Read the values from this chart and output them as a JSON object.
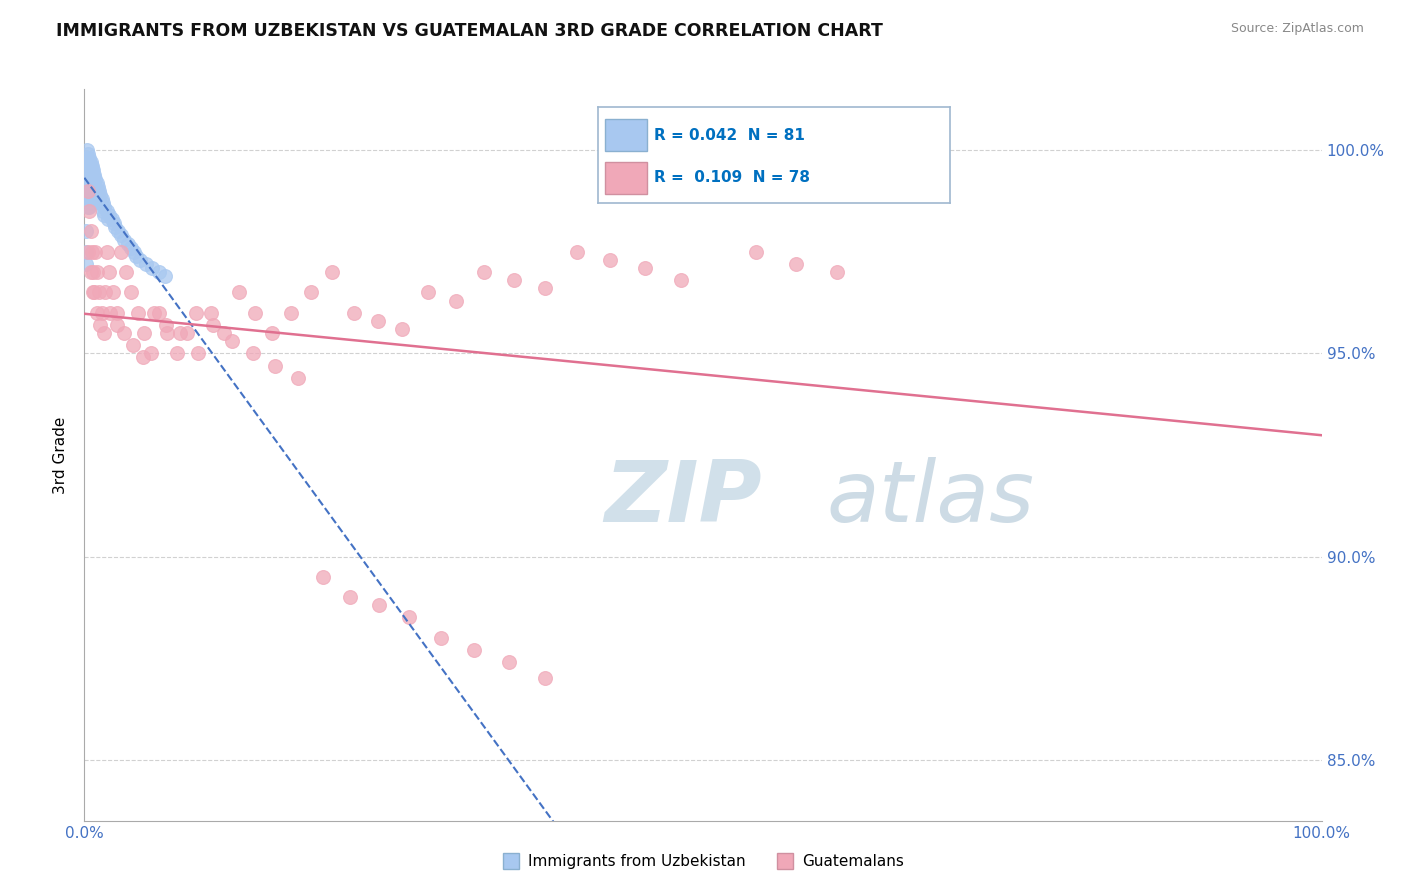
{
  "title": "IMMIGRANTS FROM UZBEKISTAN VS GUATEMALAN 3RD GRADE CORRELATION CHART",
  "source": "Source: ZipAtlas.com",
  "ylabel": "3rd Grade",
  "ytick_labels": [
    "85.0%",
    "90.0%",
    "95.0%",
    "100.0%"
  ],
  "ytick_values": [
    0.85,
    0.9,
    0.95,
    1.0
  ],
  "legend_text1": "R = 0.042  N = 81",
  "legend_text2": "R =  0.109  N = 78",
  "legend_label1": "Immigrants from Uzbekistan",
  "legend_label2": "Guatemalans",
  "watermark_zip": "ZIP",
  "watermark_atlas": "atlas",
  "color_blue": "#a8c8f0",
  "color_pink": "#f0a8b8",
  "color_blue_line": "#4472c4",
  "color_pink_line": "#e07090",
  "color_legend_r": "#0070c0",
  "color_axis_label": "#4472c4",
  "xlim": [
    0.0,
    1.0
  ],
  "ylim": [
    0.835,
    1.015
  ],
  "uzbekistan_x": [
    0.001,
    0.001,
    0.001,
    0.002,
    0.002,
    0.002,
    0.002,
    0.002,
    0.003,
    0.003,
    0.003,
    0.003,
    0.003,
    0.003,
    0.003,
    0.003,
    0.003,
    0.004,
    0.004,
    0.004,
    0.004,
    0.004,
    0.004,
    0.004,
    0.004,
    0.005,
    0.005,
    0.005,
    0.005,
    0.005,
    0.005,
    0.005,
    0.006,
    0.006,
    0.006,
    0.006,
    0.006,
    0.007,
    0.007,
    0.007,
    0.007,
    0.007,
    0.008,
    0.008,
    0.008,
    0.008,
    0.009,
    0.009,
    0.009,
    0.01,
    0.01,
    0.01,
    0.011,
    0.011,
    0.012,
    0.012,
    0.013,
    0.013,
    0.014,
    0.015,
    0.015,
    0.016,
    0.016,
    0.018,
    0.019,
    0.02,
    0.022,
    0.024,
    0.025,
    0.027,
    0.03,
    0.032,
    0.035,
    0.038,
    0.04,
    0.042,
    0.045,
    0.05,
    0.055,
    0.06,
    0.065
  ],
  "uzbekistan_y": [
    0.98,
    0.975,
    0.972,
    1.0,
    0.998,
    0.995,
    0.993,
    0.99,
    0.999,
    0.997,
    0.996,
    0.994,
    0.993,
    0.991,
    0.989,
    0.988,
    0.986,
    0.998,
    0.997,
    0.995,
    0.993,
    0.991,
    0.989,
    0.988,
    0.986,
    0.997,
    0.996,
    0.994,
    0.993,
    0.991,
    0.989,
    0.987,
    0.996,
    0.995,
    0.993,
    0.991,
    0.989,
    0.995,
    0.994,
    0.992,
    0.99,
    0.988,
    0.994,
    0.992,
    0.991,
    0.989,
    0.993,
    0.991,
    0.989,
    0.992,
    0.99,
    0.988,
    0.991,
    0.989,
    0.99,
    0.988,
    0.989,
    0.987,
    0.988,
    0.987,
    0.985,
    0.986,
    0.984,
    0.985,
    0.983,
    0.984,
    0.983,
    0.982,
    0.981,
    0.98,
    0.979,
    0.978,
    0.977,
    0.976,
    0.975,
    0.974,
    0.973,
    0.972,
    0.971,
    0.97,
    0.969
  ],
  "guatemalan_x": [
    0.003,
    0.004,
    0.005,
    0.006,
    0.007,
    0.008,
    0.009,
    0.01,
    0.012,
    0.014,
    0.016,
    0.018,
    0.02,
    0.023,
    0.026,
    0.03,
    0.034,
    0.038,
    0.043,
    0.048,
    0.054,
    0.06,
    0.067,
    0.075,
    0.083,
    0.092,
    0.102,
    0.113,
    0.125,
    0.138,
    0.152,
    0.167,
    0.183,
    0.2,
    0.218,
    0.237,
    0.257,
    0.278,
    0.3,
    0.323,
    0.347,
    0.372,
    0.398,
    0.425,
    0.453,
    0.482,
    0.512,
    0.543,
    0.575,
    0.608,
    0.003,
    0.005,
    0.007,
    0.01,
    0.013,
    0.017,
    0.021,
    0.026,
    0.032,
    0.039,
    0.047,
    0.056,
    0.066,
    0.077,
    0.09,
    0.104,
    0.119,
    0.136,
    0.154,
    0.173,
    0.193,
    0.215,
    0.238,
    0.262,
    0.288,
    0.315,
    0.343,
    0.372
  ],
  "guatemalan_y": [
    0.99,
    0.985,
    0.98,
    0.975,
    0.97,
    0.965,
    0.975,
    0.97,
    0.965,
    0.96,
    0.955,
    0.975,
    0.97,
    0.965,
    0.96,
    0.975,
    0.97,
    0.965,
    0.96,
    0.955,
    0.95,
    0.96,
    0.955,
    0.95,
    0.955,
    0.95,
    0.96,
    0.955,
    0.965,
    0.96,
    0.955,
    0.96,
    0.965,
    0.97,
    0.96,
    0.958,
    0.956,
    0.965,
    0.963,
    0.97,
    0.968,
    0.966,
    0.975,
    0.973,
    0.971,
    0.968,
    0.997,
    0.975,
    0.972,
    0.97,
    0.975,
    0.97,
    0.965,
    0.96,
    0.957,
    0.965,
    0.96,
    0.957,
    0.955,
    0.952,
    0.949,
    0.96,
    0.957,
    0.955,
    0.96,
    0.957,
    0.953,
    0.95,
    0.947,
    0.944,
    0.895,
    0.89,
    0.888,
    0.885,
    0.88,
    0.877,
    0.874,
    0.87
  ]
}
